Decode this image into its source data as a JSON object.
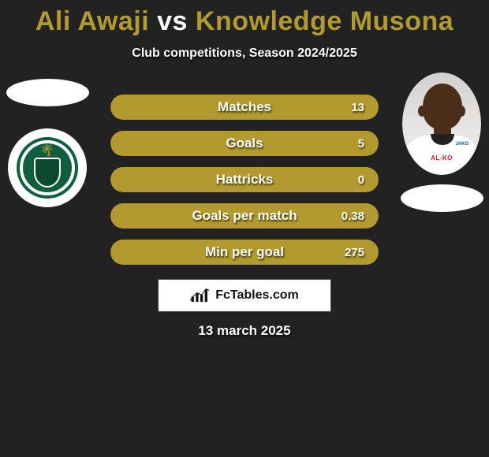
{
  "title": {
    "player1": "Ali Awaji",
    "vs": "vs",
    "player2": "Knowledge Musona",
    "player1_color": "#b39a2e",
    "vs_color": "#ffffff",
    "player2_color": "#b39a2e"
  },
  "subtitle": "Club competitions, Season 2024/2025",
  "stats": {
    "label_color": "#ffffff",
    "value_color": "#ffffff",
    "bar_left_color": "#b39a2e",
    "bar_right_color": "#b39a2e",
    "rows": [
      {
        "label": "Matches",
        "left_pct": 50,
        "left_value": "",
        "right_value": "13"
      },
      {
        "label": "Goals",
        "left_pct": 50,
        "left_value": "",
        "right_value": "5"
      },
      {
        "label": "Hattricks",
        "left_pct": 50,
        "left_value": "",
        "right_value": "0"
      },
      {
        "label": "Goals per match",
        "left_pct": 50,
        "left_value": "",
        "right_value": "0.38"
      },
      {
        "label": "Min per goal",
        "left_pct": 50,
        "left_value": "",
        "right_value": "275"
      }
    ]
  },
  "player2_photo": {
    "jersey_sponsor": "AL-KO",
    "jersey_brand": "JAKO"
  },
  "branding": {
    "text": "FcTables.com"
  },
  "date": "13 march 2025",
  "colors": {
    "page_bg": "#222222",
    "white": "#ffffff"
  }
}
